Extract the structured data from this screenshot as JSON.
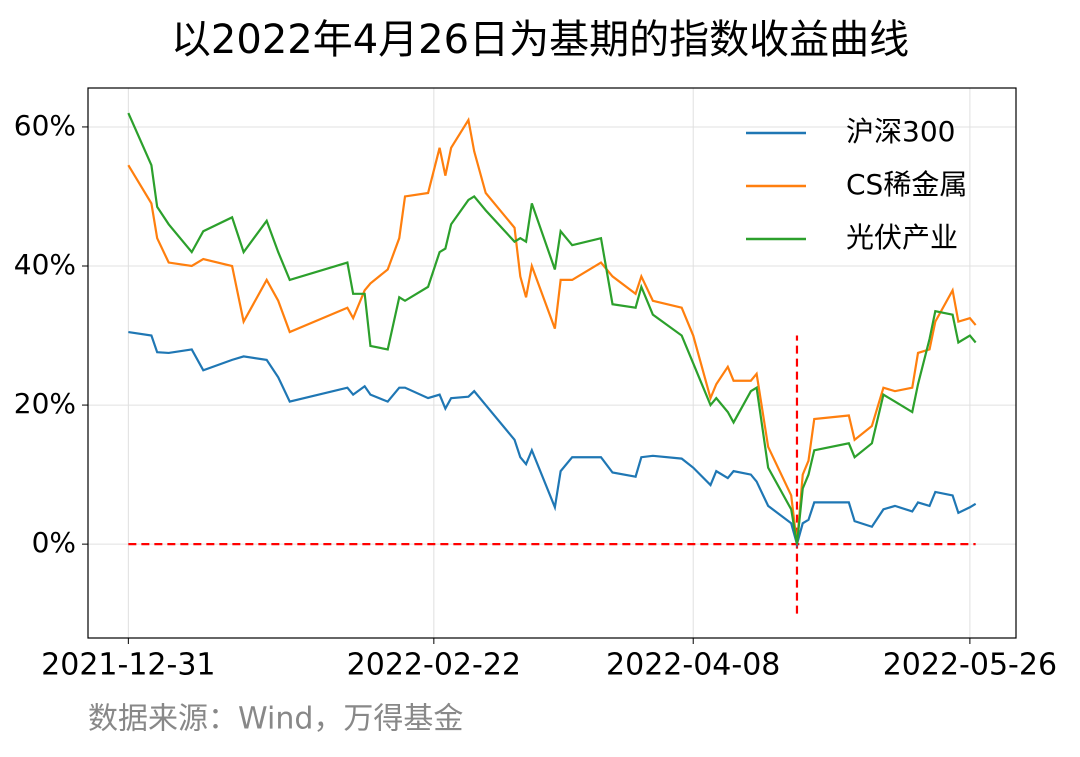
{
  "chart_data": {
    "type": "line",
    "title": "以2022年4月26日为基期的指数收益曲线",
    "source": "数据来源：Wind，万得基金",
    "x": [
      "2021-12-31",
      "2022-01-04",
      "2022-01-05",
      "2022-01-07",
      "2022-01-11",
      "2022-01-13",
      "2022-01-18",
      "2022-01-20",
      "2022-01-24",
      "2022-01-26",
      "2022-01-28",
      "2022-02-07",
      "2022-02-08",
      "2022-02-10",
      "2022-02-11",
      "2022-02-14",
      "2022-02-16",
      "2022-02-17",
      "2022-02-21",
      "2022-02-23",
      "2022-02-24",
      "2022-02-25",
      "2022-02-28",
      "2022-03-01",
      "2022-03-03",
      "2022-03-08",
      "2022-03-09",
      "2022-03-10",
      "2022-03-11",
      "2022-03-15",
      "2022-03-16",
      "2022-03-18",
      "2022-03-23",
      "2022-03-25",
      "2022-03-29",
      "2022-03-30",
      "2022-04-01",
      "2022-04-06",
      "2022-04-08",
      "2022-04-11",
      "2022-04-12",
      "2022-04-14",
      "2022-04-15",
      "2022-04-18",
      "2022-04-19",
      "2022-04-21",
      "2022-04-25",
      "2022-04-26",
      "2022-04-27",
      "2022-04-28",
      "2022-04-29",
      "2022-05-05",
      "2022-05-06",
      "2022-05-09",
      "2022-05-11",
      "2022-05-13",
      "2022-05-16",
      "2022-05-17",
      "2022-05-19",
      "2022-05-20",
      "2022-05-23",
      "2022-05-24",
      "2022-05-26",
      "2022-05-27"
    ],
    "series": [
      {
        "name": "沪深300",
        "color": "#1f77b4",
        "values": [
          30.5,
          30,
          27.6,
          27.5,
          28,
          25,
          26.5,
          27,
          26.5,
          24,
          20.5,
          22.5,
          21.5,
          22.7,
          21.5,
          20.5,
          22.5,
          22.5,
          21,
          21.5,
          19.5,
          21,
          21.2,
          22,
          20,
          15,
          12.5,
          11.5,
          13.5,
          5.3,
          10.5,
          12.5,
          12.5,
          10.3,
          9.7,
          12.5,
          12.7,
          12.3,
          11,
          8.5,
          10.5,
          9.5,
          10.5,
          10,
          9,
          5.5,
          3,
          0,
          3,
          3.5,
          6,
          6,
          3.3,
          2.5,
          5,
          5.5,
          4.7,
          6,
          5.5,
          7.5,
          7,
          4.5,
          5.3,
          5.8
        ]
      },
      {
        "name": "CS稀金属",
        "color": "#ff7f0e",
        "values": [
          54.5,
          49,
          44,
          40.5,
          40,
          41,
          40,
          32,
          38,
          35,
          30.5,
          34,
          32.5,
          36.5,
          37.5,
          39.5,
          44,
          50,
          50.5,
          57,
          53,
          57,
          61,
          56.5,
          50.5,
          45.5,
          38.5,
          35.5,
          40,
          31,
          38,
          38,
          40.5,
          38.5,
          36,
          38.5,
          35,
          34,
          30,
          21,
          23,
          25.5,
          23.5,
          23.5,
          24.5,
          14,
          7,
          0,
          10,
          12,
          18,
          18.5,
          15,
          17,
          22.5,
          22,
          22.5,
          27.5,
          28,
          32,
          36.5,
          32,
          32.5,
          31.5
        ]
      },
      {
        "name": "光伏产业",
        "color": "#2ca02c",
        "values": [
          62,
          54.5,
          48.5,
          46,
          42,
          45,
          47,
          42,
          46.5,
          42,
          38,
          40.5,
          36,
          36,
          28.5,
          28,
          35.5,
          35,
          37,
          42,
          42.5,
          46,
          49.5,
          50,
          48,
          43.5,
          44,
          43.5,
          49,
          39.5,
          45,
          43,
          44,
          34.5,
          34,
          37,
          33,
          30,
          26,
          20,
          21,
          19,
          17.5,
          22,
          22.5,
          11,
          5,
          0,
          8,
          10,
          13.5,
          14.5,
          12.5,
          14.5,
          21.5,
          20.5,
          19,
          23,
          29.5,
          33.5,
          33,
          29,
          30,
          29
        ]
      }
    ],
    "xlim": [
      "2021-12-24",
      "2022-06-03"
    ],
    "xticks": [
      "2021-12-31",
      "2022-02-22",
      "2022-04-08",
      "2022-05-26"
    ],
    "ylim": [
      -13.5,
      65.6
    ],
    "yticks": [
      {
        "value": 0,
        "label": "0%"
      },
      {
        "value": 20,
        "label": "20%"
      },
      {
        "value": 40,
        "label": "40%"
      },
      {
        "value": 60,
        "label": "60%"
      }
    ],
    "grid": true,
    "legend": "upper right",
    "reference_color": "#ff0000",
    "reference_lines": [
      {
        "y": 0
      },
      {
        "x": "2022-04-26",
        "y_range": [
          -10,
          30
        ]
      }
    ]
  }
}
